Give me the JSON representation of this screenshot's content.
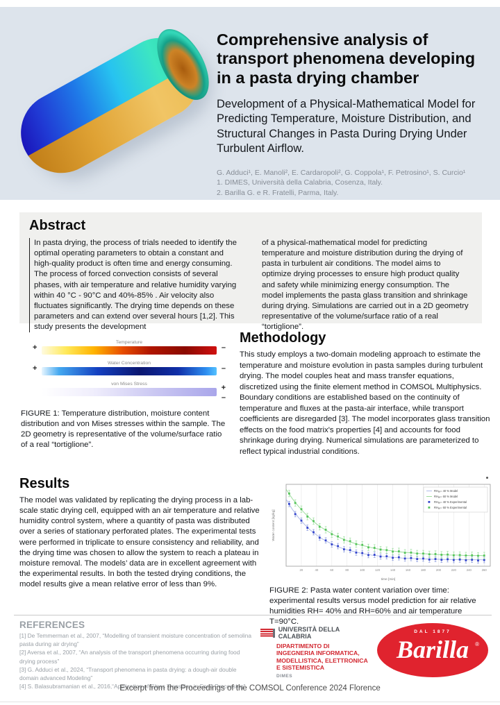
{
  "colors": {
    "header_band": "#dde4ec",
    "abstract_panel": "#f0f0ee",
    "accent_red": "#d22730",
    "barilla_red": "#e0232e",
    "chart_model_rh40": "#a8b4e8",
    "chart_model_rh60": "#92d992",
    "chart_exp_rh40": "#3344cc",
    "chart_exp_rh60": "#55c45a"
  },
  "header": {
    "title": "Comprehensive analysis of transport phenomena developing in a pasta drying chamber",
    "subtitle": "Development of a Physical-Mathematical Model for Predicting Temperature, Moisture Distribution, and Structural Changes in Pasta During Drying Under Turbulent Airflow.",
    "authors": "G. Adduci¹, E. Manoli², E. Cardaropoli², G. Coppola¹, F. Petrosino¹, S. Curcio¹",
    "affil1": "1. DIMES, Università della Calabria, Cosenza, Italy.",
    "affil2": "2. Barilla G. e R. Fratelli, Parma, Italy."
  },
  "abstract": {
    "heading": "Abstract",
    "col1": "In pasta drying, the process of trials needed to identify the optimal operating parameters to obtain a constant and high-quality product is often time and energy consuming. The process of forced convection consists of several phases, with air temperature and relative humidity varying within 40 °C - 90°C and 40%-85% . Air velocity also fluctuates significantly. The drying time depends on these parameters and can extend over several hours [1,2]. This study presents the development",
    "col2": "of a physical-mathematical model for predicting temperature and moisture distribution during the drying of pasta in turbulent air conditions. The model aims to optimize drying processes to ensure high product quality and safety while minimizing energy consumption. The model implements the pasta glass transition and shrinkage during drying. Simulations are carried out in a 2D geometry representative of the volume/surface ratio of a real “tortiglione”."
  },
  "figure1": {
    "bars": [
      {
        "label": "Temperature",
        "plus": "+",
        "minus": "–",
        "gradient": [
          "#fffbe0 0%",
          "#ffe95a 14%",
          "#ffb300 30%",
          "#e84e00 46%",
          "#b01500 62%",
          "#8a0a00 82%",
          "#d01010 100%"
        ]
      },
      {
        "label": "Water Concentration",
        "plus": "+",
        "minus": "–",
        "gradient": [
          "#e8f6ff 0%",
          "#44a8f0 10%",
          "#1440c0 32%",
          "#0a1670 56%",
          "#102fa8 78%",
          "#2e8ef0 94%",
          "#55c2ff 100%"
        ]
      },
      {
        "label": "von Mises Stress",
        "plus": "+",
        "minus": "–",
        "gradient": [
          "#ffffff 0%",
          "#efedfc 30%",
          "#cac7f2 65%",
          "#a9a6ea 100%"
        ]
      }
    ],
    "caption": "FIGURE 1: Temperature distribution, moisture content distribution and von Mises stresses within the sample. The 2D geometry is representative of the volume/surface ratio of a real “tortiglione”."
  },
  "methodology": {
    "heading": "Methodology",
    "body": "This study employs a two-domain modeling approach to estimate the temperature and moisture evolution in pasta samples during turbulent drying. The model couples heat and mass transfer equations, discretized using the finite element method in COMSOL Multiphysics. Boundary conditions are established based on the continuity of temperature and fluxes at the pasta-air interface, while transport coefficients are disregarded [3]. The model incorporates glass transition effects on the food matrix's properties [4] and accounts for food shrinkage during drying. Numerical simulations are parameterized to reflect typical industrial conditions."
  },
  "results": {
    "heading": "Results",
    "body": "The model was validated by replicating the drying process in a lab-scale static drying cell, equipped with an air temperature and relative humidity control system, where a quantity of pasta was distributed over a series of stationary perforated plates. The experimental tests were performed in triplicate to ensure consistency and reliability, and the drying time was chosen to allow the system to reach a plateau in moisture removal. The models’ data are in excellent agreement with the experimental results. In both the tested drying conditions, the model results give a mean relative error of less than 9%."
  },
  "figure2": {
    "caption": "FIGURE 2:  Pasta water content variation over time: experimental results versus model prediction for air relative humidities RH= 40% and RH=60% and air temperature T=90°C."
  },
  "chart_data": {
    "type": "line+scatter",
    "title": "",
    "xlabel": "time [min]",
    "ylabel": "Water content [kg/kg]",
    "xlim": [
      0,
      268
    ],
    "ylim": [
      0.09,
      0.42
    ],
    "x_ticks": [
      20,
      40,
      60,
      80,
      100,
      120,
      140,
      160,
      180,
      200,
      220,
      240,
      260
    ],
    "grid": "vertical",
    "legend_position": "top-right",
    "series": [
      {
        "name": "RHₐᵢᵣ= 40 % Model",
        "type": "line",
        "color": "#a8b4e8",
        "points": [
          [
            0,
            0.36
          ],
          [
            8,
            0.32
          ],
          [
            16,
            0.287
          ],
          [
            24,
            0.259
          ],
          [
            32,
            0.235
          ],
          [
            40,
            0.216
          ],
          [
            48,
            0.199
          ],
          [
            56,
            0.186
          ],
          [
            64,
            0.174
          ],
          [
            72,
            0.164
          ],
          [
            80,
            0.156
          ],
          [
            88,
            0.15
          ],
          [
            96,
            0.144
          ],
          [
            104,
            0.139
          ],
          [
            112,
            0.135
          ],
          [
            120,
            0.132
          ],
          [
            128,
            0.129
          ],
          [
            136,
            0.127
          ],
          [
            144,
            0.125
          ],
          [
            152,
            0.123
          ],
          [
            160,
            0.122
          ],
          [
            168,
            0.121
          ],
          [
            176,
            0.12
          ],
          [
            184,
            0.119
          ],
          [
            192,
            0.118
          ],
          [
            200,
            0.118
          ],
          [
            208,
            0.117
          ],
          [
            216,
            0.117
          ],
          [
            224,
            0.117
          ],
          [
            232,
            0.116
          ],
          [
            240,
            0.116
          ],
          [
            248,
            0.116
          ],
          [
            256,
            0.116
          ],
          [
            260,
            0.115
          ]
        ]
      },
      {
        "name": "RHₐᵢᵣ= 60 % Model",
        "type": "line",
        "color": "#92d992",
        "points": [
          [
            0,
            0.4
          ],
          [
            8,
            0.363
          ],
          [
            16,
            0.332
          ],
          [
            24,
            0.305
          ],
          [
            32,
            0.281
          ],
          [
            40,
            0.26
          ],
          [
            48,
            0.243
          ],
          [
            56,
            0.228
          ],
          [
            64,
            0.214
          ],
          [
            72,
            0.203
          ],
          [
            80,
            0.193
          ],
          [
            88,
            0.184
          ],
          [
            96,
            0.177
          ],
          [
            104,
            0.171
          ],
          [
            112,
            0.165
          ],
          [
            120,
            0.16
          ],
          [
            128,
            0.156
          ],
          [
            136,
            0.153
          ],
          [
            144,
            0.15
          ],
          [
            152,
            0.147
          ],
          [
            160,
            0.145
          ],
          [
            168,
            0.143
          ],
          [
            176,
            0.141
          ],
          [
            184,
            0.14
          ],
          [
            192,
            0.138
          ],
          [
            200,
            0.137
          ],
          [
            208,
            0.136
          ],
          [
            216,
            0.135
          ],
          [
            224,
            0.135
          ],
          [
            232,
            0.134
          ],
          [
            240,
            0.133
          ],
          [
            248,
            0.133
          ],
          [
            256,
            0.133
          ],
          [
            260,
            0.132
          ]
        ]
      },
      {
        "name": "RHₐᵢᵣ= 40 % Experimental",
        "type": "scatter",
        "color": "#3344cc",
        "error_color": "#8a9ade",
        "error": 0.011,
        "points": [
          [
            4,
            0.341
          ],
          [
            12,
            0.3
          ],
          [
            20,
            0.274
          ],
          [
            28,
            0.245
          ],
          [
            36,
            0.227
          ],
          [
            44,
            0.205
          ],
          [
            52,
            0.194
          ],
          [
            60,
            0.178
          ],
          [
            68,
            0.171
          ],
          [
            76,
            0.158
          ],
          [
            84,
            0.155
          ],
          [
            92,
            0.145
          ],
          [
            100,
            0.143
          ],
          [
            108,
            0.135
          ],
          [
            116,
            0.136
          ],
          [
            124,
            0.129
          ],
          [
            132,
            0.13
          ],
          [
            140,
            0.124
          ],
          [
            148,
            0.126
          ],
          [
            156,
            0.121
          ],
          [
            164,
            0.123
          ],
          [
            172,
            0.119
          ],
          [
            180,
            0.121
          ],
          [
            188,
            0.117
          ],
          [
            196,
            0.119
          ],
          [
            204,
            0.116
          ],
          [
            212,
            0.118
          ],
          [
            220,
            0.115
          ],
          [
            228,
            0.117
          ],
          [
            236,
            0.114
          ],
          [
            244,
            0.116
          ],
          [
            252,
            0.113
          ],
          [
            260,
            0.115
          ]
        ]
      },
      {
        "name": "RHₐᵢᵣ= 60 % Experimental",
        "type": "scatter",
        "color": "#55c45a",
        "error_color": "#9edfa0",
        "error": 0.013,
        "points": [
          [
            4,
            0.383
          ],
          [
            12,
            0.345
          ],
          [
            20,
            0.32
          ],
          [
            28,
            0.29
          ],
          [
            36,
            0.272
          ],
          [
            44,
            0.249
          ],
          [
            52,
            0.237
          ],
          [
            60,
            0.219
          ],
          [
            68,
            0.21
          ],
          [
            76,
            0.196
          ],
          [
            84,
            0.191
          ],
          [
            92,
            0.179
          ],
          [
            100,
            0.176
          ],
          [
            108,
            0.166
          ],
          [
            116,
            0.164
          ],
          [
            124,
            0.157
          ],
          [
            132,
            0.155
          ],
          [
            140,
            0.149
          ],
          [
            148,
            0.15
          ],
          [
            156,
            0.144
          ],
          [
            164,
            0.145
          ],
          [
            172,
            0.141
          ],
          [
            180,
            0.141
          ],
          [
            188,
            0.138
          ],
          [
            196,
            0.139
          ],
          [
            204,
            0.136
          ],
          [
            212,
            0.137
          ],
          [
            220,
            0.134
          ],
          [
            228,
            0.135
          ],
          [
            236,
            0.133
          ],
          [
            244,
            0.134
          ],
          [
            252,
            0.132
          ],
          [
            260,
            0.133
          ]
        ]
      }
    ]
  },
  "references": {
    "heading": "REFERENCES",
    "items": [
      "[1] De Temmerman et al., 2007,  “Modelling of transient moisture concentration of semolina pasta during air drying”",
      "[2] Aversa et al., 2007, “An analysis of the transport phenomena occurring during food drying process”",
      "[3] G. Adduci et al., 2024, “Transport phenomena in pasta drying: a dough-air double domain advanced Modeling”",
      "[4] S. Balasubramanian et al., 2016,“Application of Glass Transition in Food Processing”"
    ]
  },
  "logos": {
    "unical": {
      "name": "UNIVERSITÀ DELLA CALABRIA",
      "dept1": "DIPARTIMENTO DI",
      "dept2": "INGEGNERIA INFORMATICA,",
      "dept3": "MODELLISTICA, ELETTRONICA",
      "dept4": "E SISTEMISTICA",
      "sub": "DIMES"
    },
    "barilla": {
      "top": "DAL 1877",
      "name": "Barilla",
      "reg": "®"
    }
  },
  "footer": "Excerpt from the Proceedings of the COMSOL Conference 2024 Florence"
}
